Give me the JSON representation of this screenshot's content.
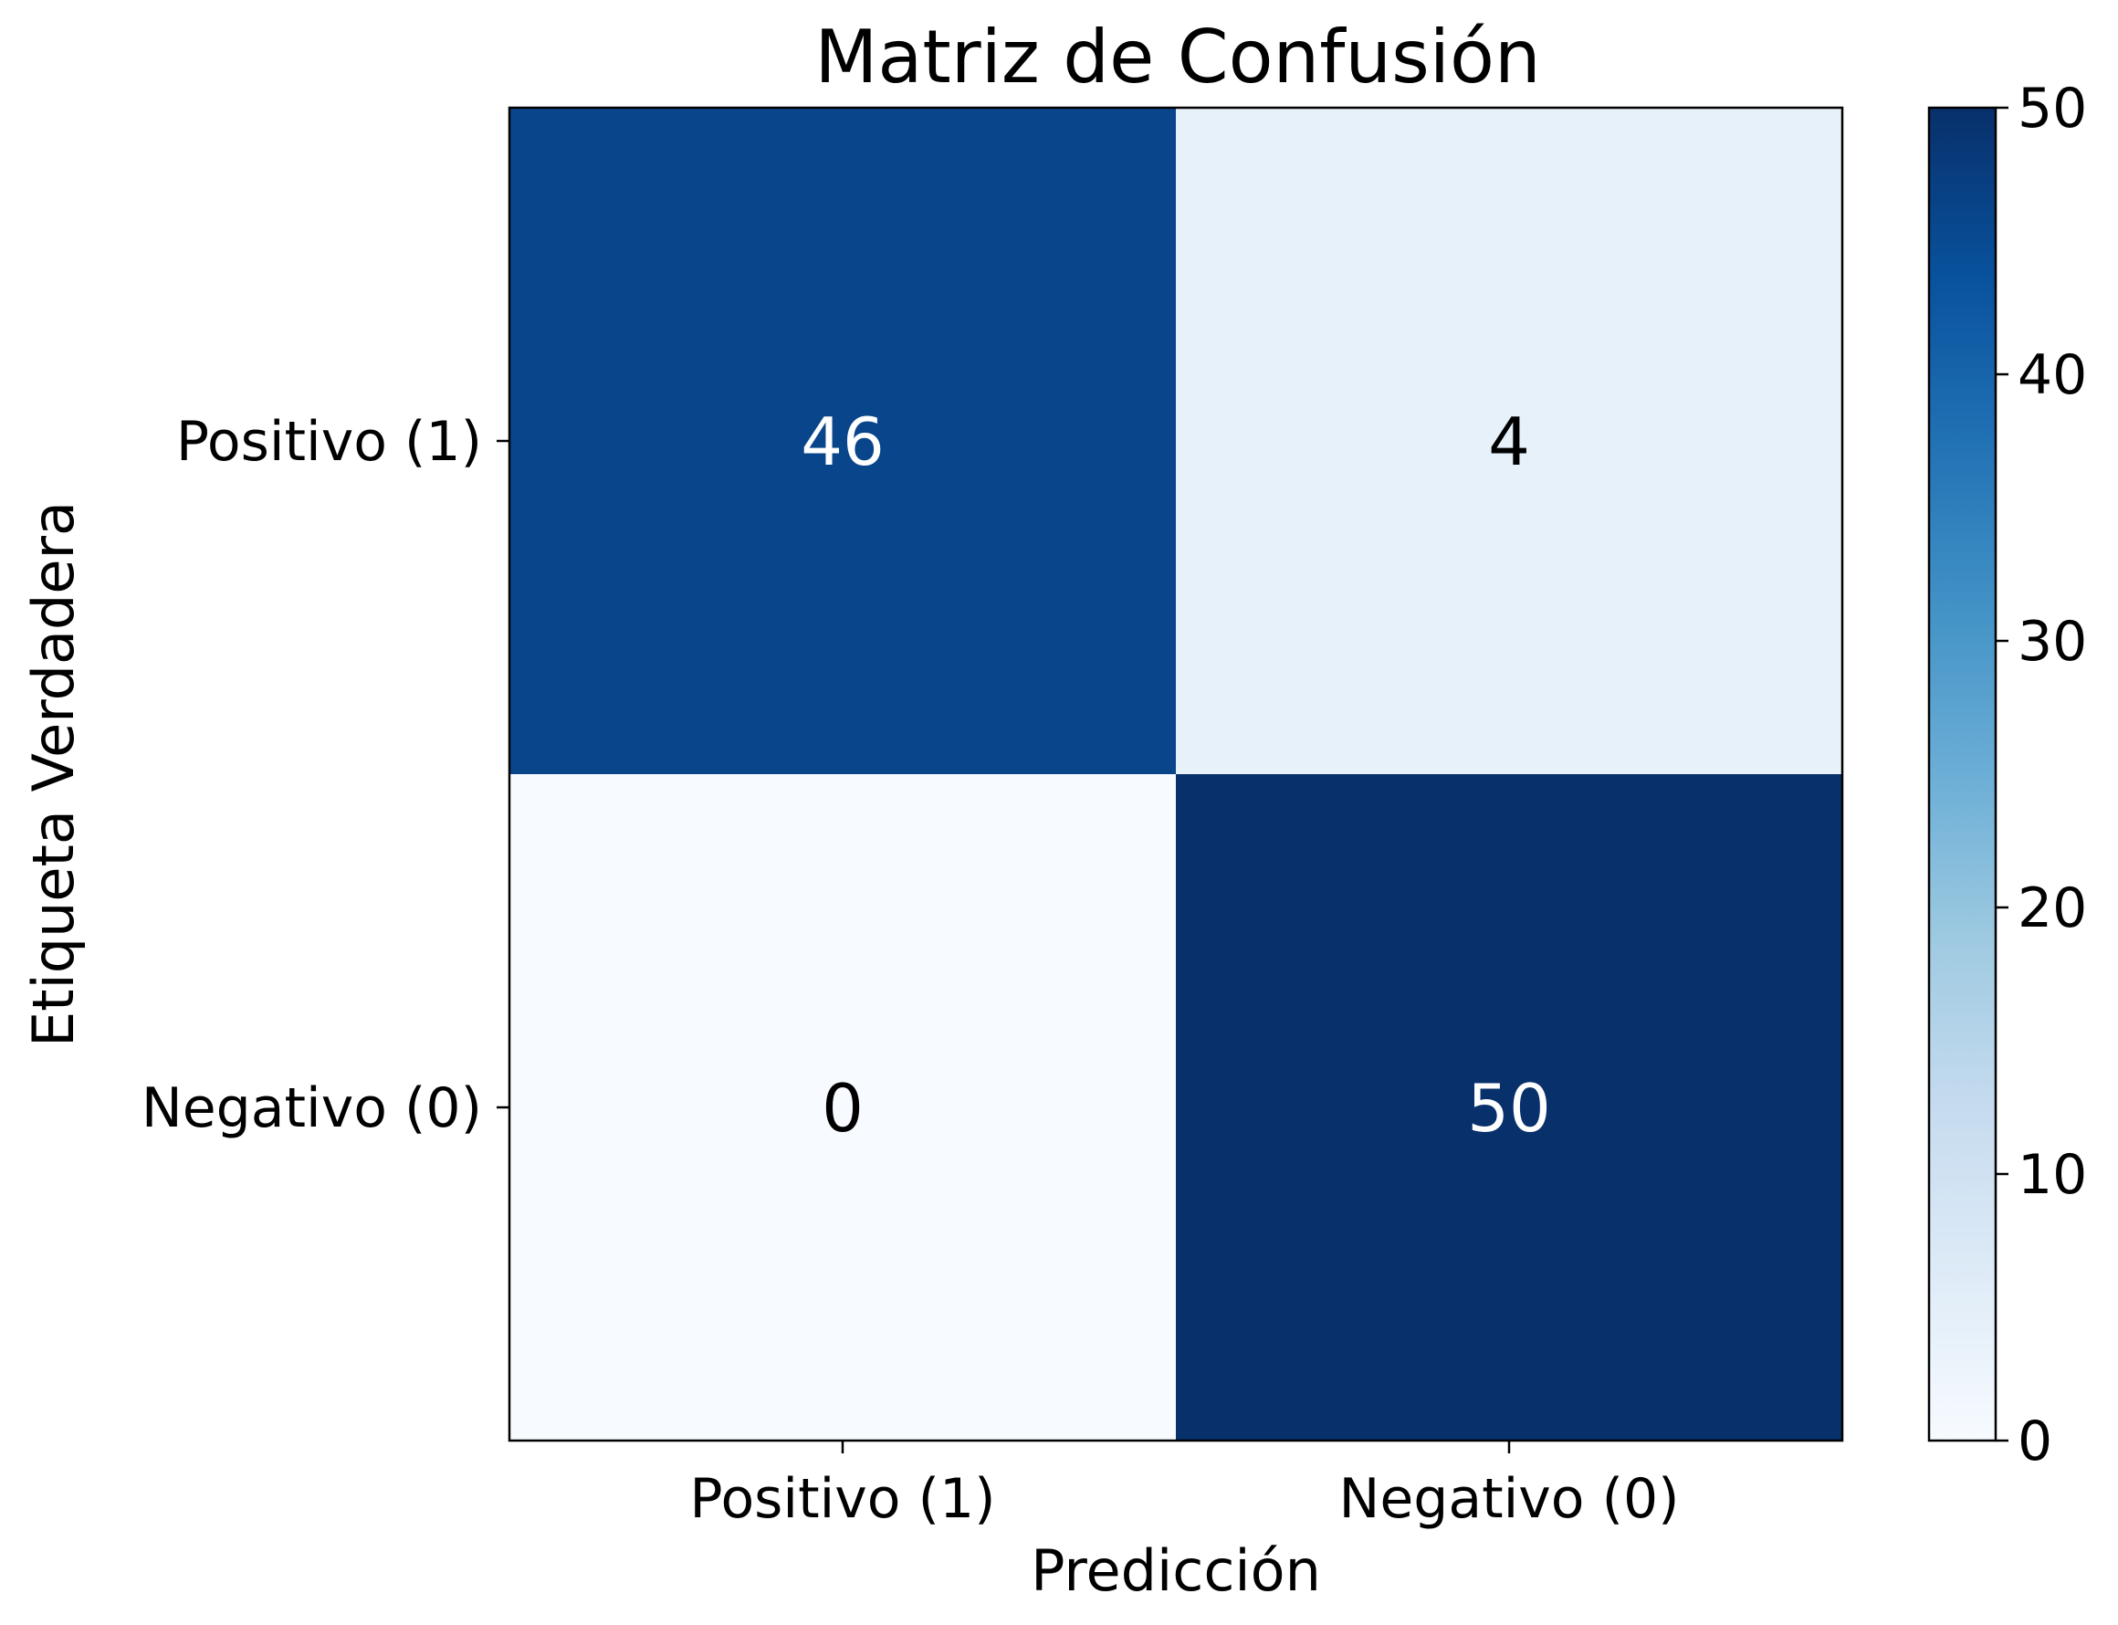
{
  "chart_data": {
    "type": "heatmap",
    "title": "Matriz de Confusión",
    "xlabel": "Predicción",
    "ylabel": "Etiqueta Verdadera",
    "x_categories": [
      "Positivo (1)",
      "Negativo (0)"
    ],
    "y_categories": [
      "Positivo (1)",
      "Negativo (0)"
    ],
    "values": [
      [
        46,
        4
      ],
      [
        0,
        50
      ]
    ],
    "colormap": "Blues",
    "vmin": 0,
    "vmax": 50,
    "colorbar_ticks": [
      0,
      10,
      20,
      30,
      40,
      50
    ],
    "colors": {
      "colormap_stops": [
        "#f7fbff",
        "#deebf7",
        "#c6dbef",
        "#9ecae1",
        "#6baed6",
        "#4292c6",
        "#2171b5",
        "#08519c",
        "#08306b"
      ],
      "text_light": "#ffffff",
      "text_dark": "#000000"
    }
  }
}
